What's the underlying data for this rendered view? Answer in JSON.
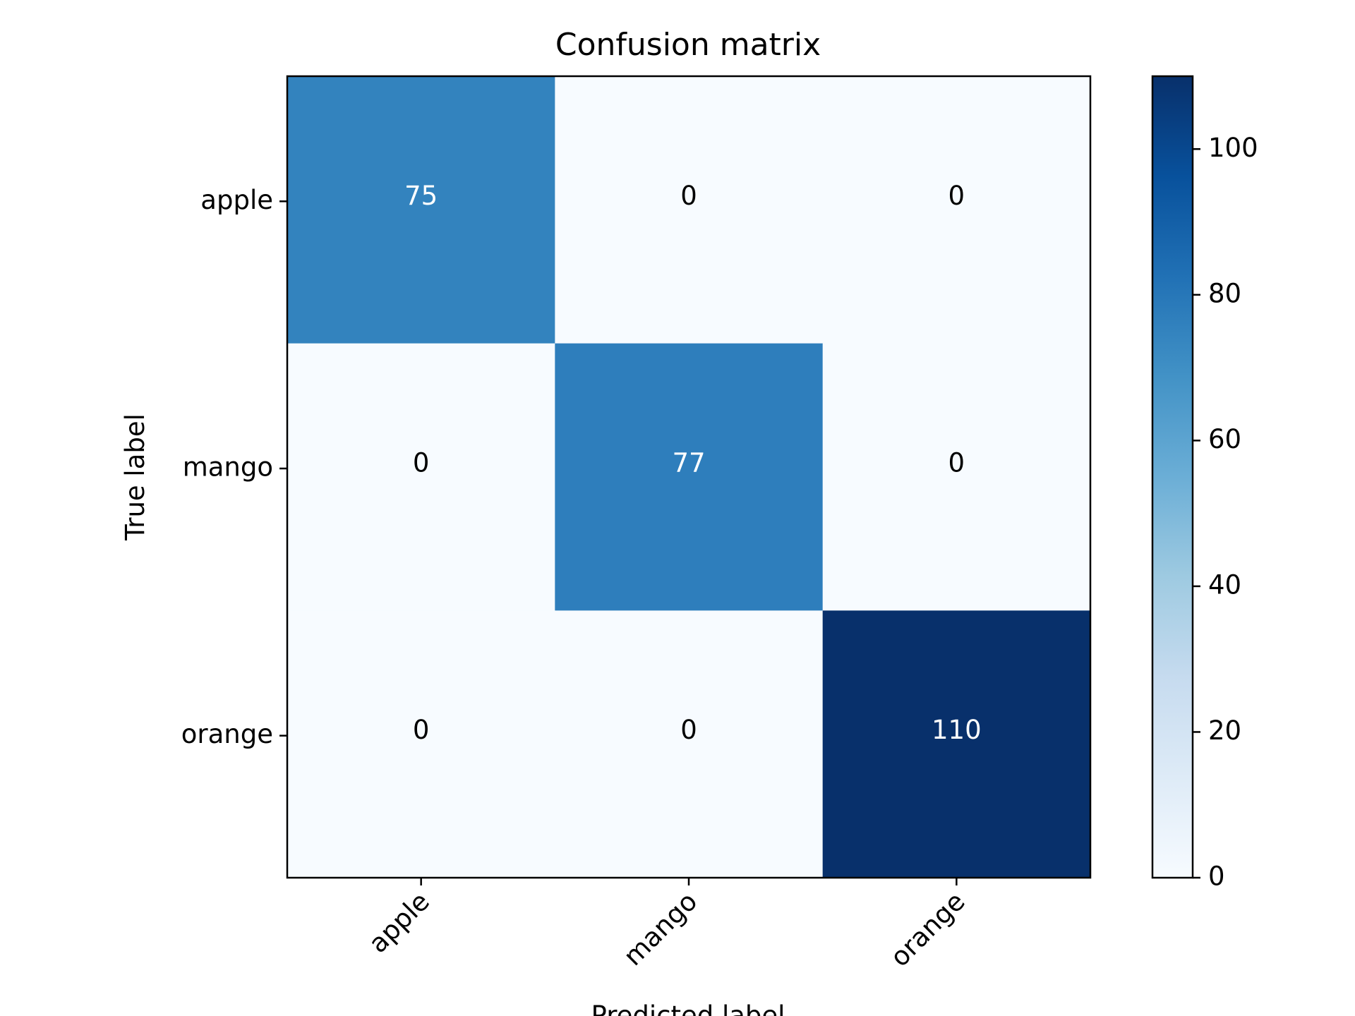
{
  "chart_data": {
    "type": "heatmap",
    "title": "Confusion matrix",
    "xlabel": "Predicted label",
    "ylabel": "True label",
    "x_categories": [
      "apple",
      "mango",
      "orange"
    ],
    "y_categories": [
      "apple",
      "mango",
      "orange"
    ],
    "values": [
      [
        75,
        0,
        0
      ],
      [
        0,
        77,
        0
      ],
      [
        0,
        0,
        110
      ]
    ],
    "cell_labels": [
      [
        "75",
        "0",
        "0"
      ],
      [
        "0",
        "77",
        "0"
      ],
      [
        "0",
        "0",
        "110"
      ]
    ],
    "colormap": "Blues",
    "vmin": 0,
    "vmax": 110,
    "colorbar_ticks": [
      0,
      20,
      40,
      60,
      80,
      100
    ],
    "colorbar_tick_labels": [
      "0",
      "20",
      "40",
      "60",
      "80",
      "100"
    ],
    "colors": {
      "low": "#f7fbff",
      "high": "#08306b"
    }
  }
}
